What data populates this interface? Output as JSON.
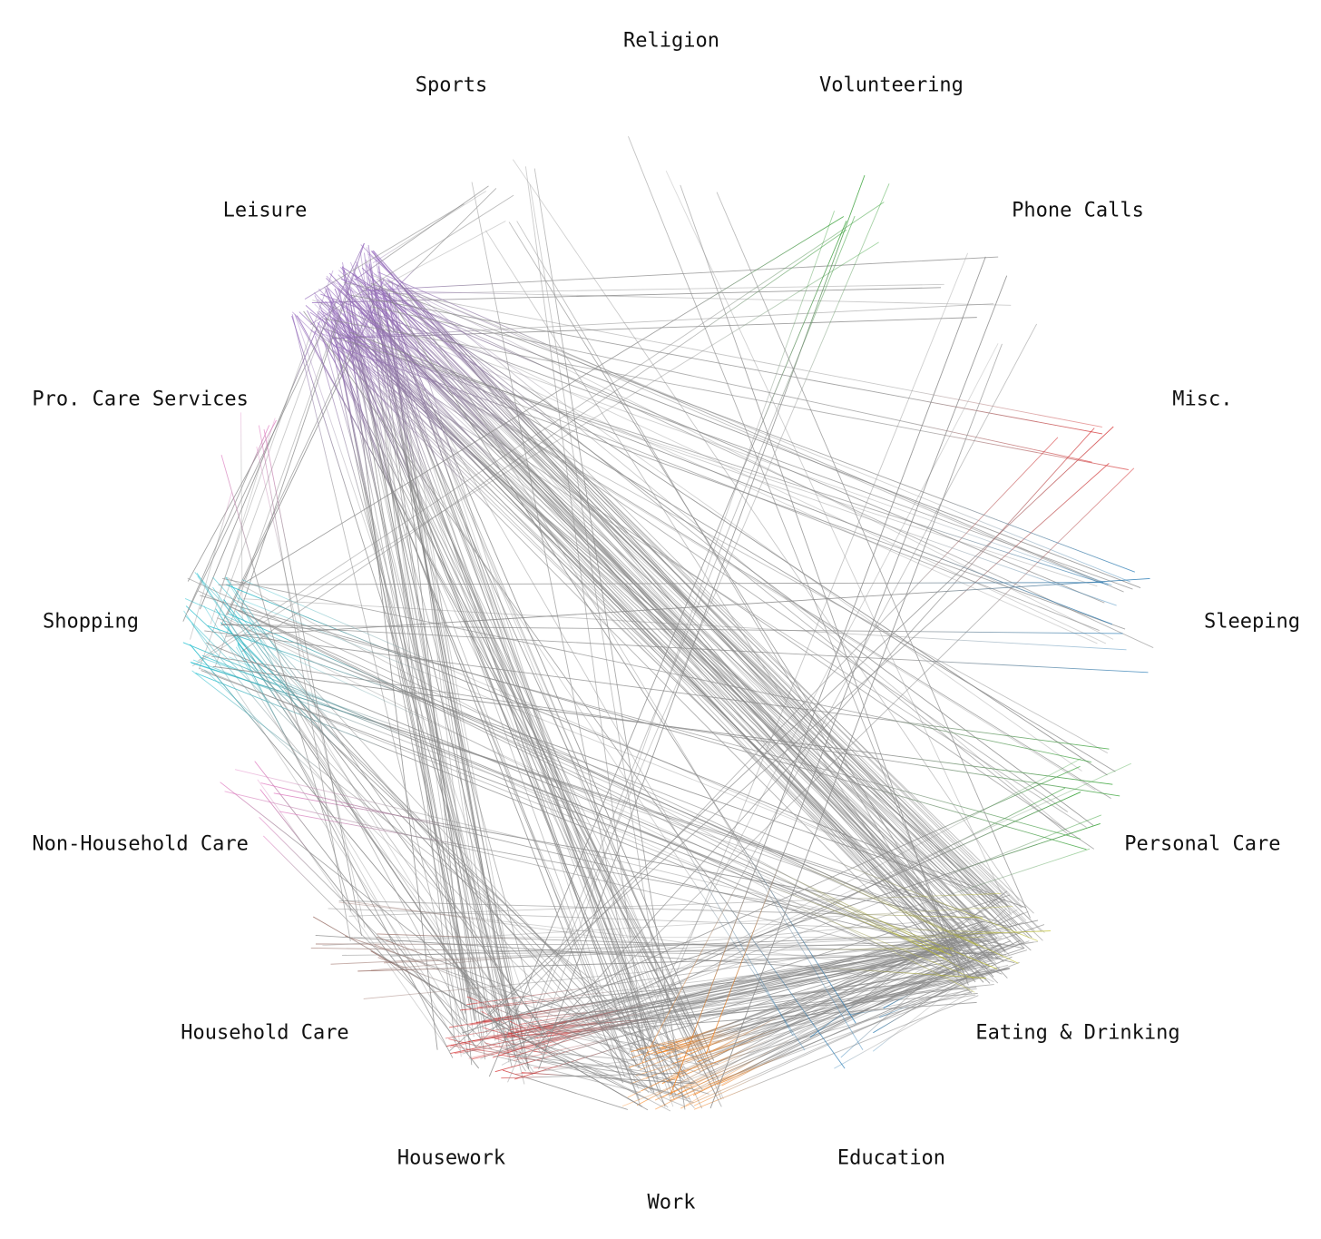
{
  "chart_data": {
    "type": "chord-lines",
    "title": "",
    "categories": [
      {
        "name": "Religion",
        "color": "#aaaaaa"
      },
      {
        "name": "Volunteering",
        "color": "#2ca02c"
      },
      {
        "name": "Phone Calls",
        "color": "#aaaaaa"
      },
      {
        "name": "Misc.",
        "color": "#d62728"
      },
      {
        "name": "Sleeping",
        "color": "#1f77b4"
      },
      {
        "name": "Personal Care",
        "color": "#2ca02c"
      },
      {
        "name": "Eating & Drinking",
        "color": "#bcbd22"
      },
      {
        "name": "Education",
        "color": "#1f77b4"
      },
      {
        "name": "Work",
        "color": "#ff7f0e"
      },
      {
        "name": "Housework",
        "color": "#d62728"
      },
      {
        "name": "Household Care",
        "color": "#8c564b"
      },
      {
        "name": "Non-Household Care",
        "color": "#e377c2"
      },
      {
        "name": "Shopping",
        "color": "#17becf"
      },
      {
        "name": "Pro. Care Services",
        "color": "#e377c2"
      },
      {
        "name": "Leisure",
        "color": "#9467bd"
      },
      {
        "name": "Sports",
        "color": "#aaaaaa"
      }
    ],
    "transitions": [
      {
        "from": "Leisure",
        "to": "Eating & Drinking",
        "count": 70
      },
      {
        "from": "Leisure",
        "to": "Work",
        "count": 40
      },
      {
        "from": "Leisure",
        "to": "Housework",
        "count": 40
      },
      {
        "from": "Leisure",
        "to": "Sleeping",
        "count": 12
      },
      {
        "from": "Leisure",
        "to": "Personal Care",
        "count": 12
      },
      {
        "from": "Leisure",
        "to": "Phone Calls",
        "count": 6
      },
      {
        "from": "Leisure",
        "to": "Shopping",
        "count": 8
      },
      {
        "from": "Leisure",
        "to": "Sports",
        "count": 6
      },
      {
        "from": "Work",
        "to": "Eating & Drinking",
        "count": 50
      },
      {
        "from": "Housework",
        "to": "Eating & Drinking",
        "count": 40
      },
      {
        "from": "Housework",
        "to": "Work",
        "count": 20
      },
      {
        "from": "Shopping",
        "to": "Eating & Drinking",
        "count": 15
      },
      {
        "from": "Shopping",
        "to": "Housework",
        "count": 15
      },
      {
        "from": "Shopping",
        "to": "Work",
        "count": 10
      },
      {
        "from": "Household Care",
        "to": "Eating & Drinking",
        "count": 10
      },
      {
        "from": "Household Care",
        "to": "Work",
        "count": 6
      },
      {
        "from": "Non-Household Care",
        "to": "Housework",
        "count": 6
      },
      {
        "from": "Non-Household Care",
        "to": "Eating & Drinking",
        "count": 5
      },
      {
        "from": "Pro. Care Services",
        "to": "Shopping",
        "count": 5
      },
      {
        "from": "Pro. Care Services",
        "to": "Household Care",
        "count": 4
      },
      {
        "from": "Volunteering",
        "to": "Housework",
        "count": 5
      },
      {
        "from": "Volunteering",
        "to": "Shopping",
        "count": 4
      },
      {
        "from": "Misc.",
        "to": "Housework",
        "count": 5
      },
      {
        "from": "Misc.",
        "to": "Leisure",
        "count": 4
      },
      {
        "from": "Sleeping",
        "to": "Leisure",
        "count": 6
      },
      {
        "from": "Sleeping",
        "to": "Shopping",
        "count": 5
      },
      {
        "from": "Personal Care",
        "to": "Housework",
        "count": 8
      },
      {
        "from": "Personal Care",
        "to": "Shopping",
        "count": 6
      },
      {
        "from": "Education",
        "to": "Eating & Drinking",
        "count": 8
      },
      {
        "from": "Education",
        "to": "Leisure",
        "count": 5
      },
      {
        "from": "Eating & Drinking",
        "to": "Shopping",
        "count": 10
      },
      {
        "from": "Eating & Drinking",
        "to": "Household Care",
        "count": 8
      },
      {
        "from": "Religion",
        "to": "Eating & Drinking",
        "count": 4
      },
      {
        "from": "Sports",
        "to": "Work",
        "count": 4
      },
      {
        "from": "Sports",
        "to": "Eating & Drinking",
        "count": 4
      },
      {
        "from": "Phone Calls",
        "to": "Work",
        "count": 3
      },
      {
        "from": "Work",
        "to": "Phone Calls",
        "count": 3
      }
    ]
  }
}
